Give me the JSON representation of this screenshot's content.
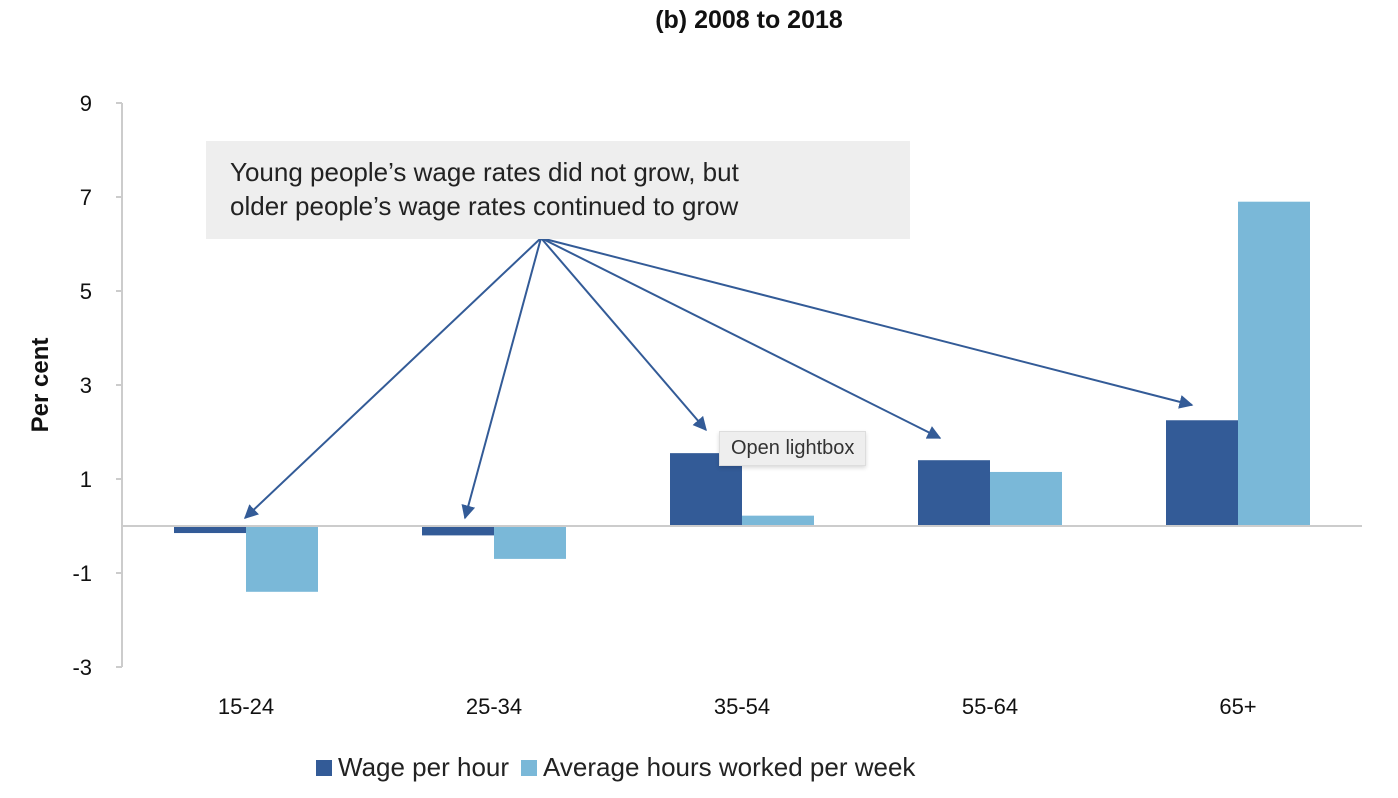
{
  "chart_data": {
    "type": "bar",
    "title": "(b)   2008 to 2018",
    "ylabel": "Per cent",
    "xlabel": "",
    "ylim": [
      -3,
      9
    ],
    "yticks": [
      9,
      7,
      5,
      3,
      1,
      -1,
      -3
    ],
    "categories": [
      "15-24",
      "25-34",
      "35-54",
      "55-64",
      "65+"
    ],
    "series": [
      {
        "name": "Wage per hour",
        "color": "#335b97",
        "values": [
          -0.15,
          -0.2,
          1.55,
          1.4,
          2.25
        ]
      },
      {
        "name": "Average hours worked per week",
        "color": "#7ab8d8",
        "values": [
          -1.4,
          -0.7,
          0.22,
          1.15,
          6.9
        ]
      }
    ],
    "annotation": [
      "Young people’s wage rates did not grow, but",
      "older people’s wage rates continued to grow"
    ],
    "legend": "bottom"
  },
  "tooltip": "Open lightbox"
}
